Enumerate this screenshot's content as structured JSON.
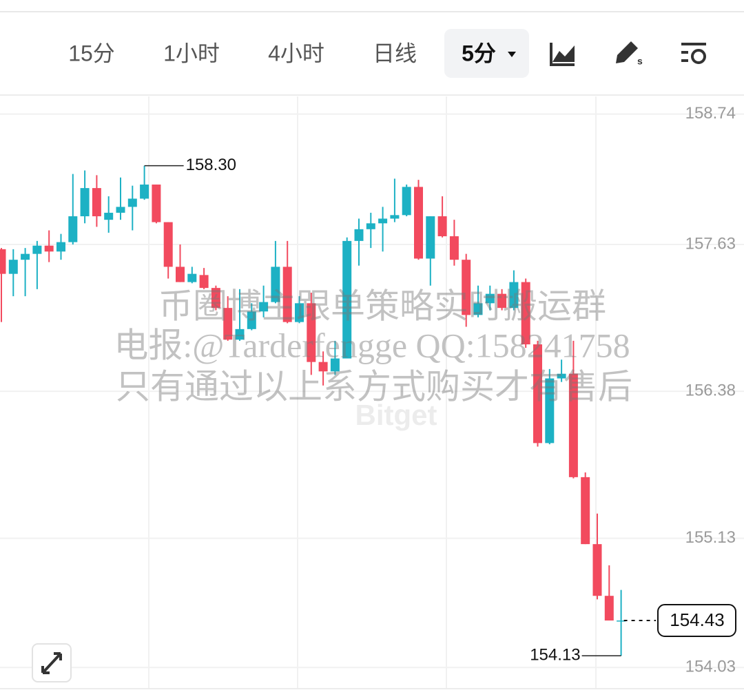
{
  "toolbar": {
    "tabs": [
      "15分",
      "1小时",
      "4小时",
      "日线"
    ],
    "active": "5分"
  },
  "watermark": {
    "lines": [
      "币圈博主跟单策略实时搬运群",
      "电报:@Tarderfengge QQ:158241758",
      "只有通过以上系方式购买才有售后"
    ],
    "logo": "Bitget"
  },
  "chart_data": {
    "type": "candlestick",
    "up_color": "#1db1c4",
    "down_color": "#f24a5e",
    "grid": true,
    "ylim": [
      153.85,
      158.89
    ],
    "yticks": [
      158.74,
      157.63,
      156.38,
      155.13,
      154.03
    ],
    "open": [
      157.59,
      157.38,
      157.5,
      157.55,
      157.62,
      157.57,
      157.65,
      157.87,
      158.11,
      157.84,
      157.9,
      157.95,
      158.02,
      158.14,
      157.82,
      157.44,
      157.31,
      157.37,
      157.26,
      157.09,
      156.82,
      156.91,
      157.06,
      157.14,
      157.44,
      156.97,
      157.13,
      156.63,
      156.55,
      156.66,
      157.66,
      157.76,
      157.81,
      157.85,
      157.88,
      158.12,
      157.51,
      157.87,
      157.7,
      157.5,
      157.03,
      157.13,
      157.21,
      157.09,
      157.31,
      156.78,
      155.94,
      156.49,
      156.53,
      155.65,
      155.08,
      154.64,
      154.43
    ],
    "high": [
      157.6,
      157.59,
      157.6,
      157.66,
      157.75,
      157.72,
      158.23,
      158.26,
      158.22,
      158.04,
      158.2,
      158.13,
      158.3,
      158.14,
      157.82,
      157.63,
      157.44,
      157.43,
      157.28,
      157.19,
      157.25,
      157.13,
      157.28,
      157.66,
      157.66,
      157.19,
      157.22,
      156.72,
      156.81,
      157.69,
      157.85,
      157.9,
      157.95,
      158.19,
      158.14,
      158.18,
      157.87,
      158.04,
      157.84,
      157.55,
      157.28,
      157.28,
      157.25,
      157.41,
      157.34,
      156.81,
      156.57,
      156.65,
      156.81,
      155.69,
      155.34,
      154.9,
      154.69
    ],
    "low": [
      156.97,
      157.19,
      157.19,
      157.25,
      157.48,
      157.5,
      157.63,
      157.81,
      157.78,
      157.73,
      157.84,
      157.75,
      158.01,
      157.81,
      157.34,
      157.31,
      157.3,
      157.25,
      157.07,
      156.81,
      156.81,
      156.9,
      157.01,
      157.13,
      156.96,
      156.96,
      156.52,
      156.43,
      156.52,
      156.66,
      157.45,
      157.6,
      157.57,
      157.82,
      157.87,
      157.5,
      157.28,
      157.69,
      157.45,
      156.93,
      157.01,
      157.07,
      157.07,
      157.07,
      156.75,
      155.91,
      155.93,
      156.46,
      155.64,
      155.08,
      154.61,
      154.43,
      154.13
    ],
    "close": [
      157.38,
      157.5,
      157.55,
      157.62,
      157.57,
      157.65,
      157.87,
      158.11,
      157.87,
      157.9,
      157.95,
      158.02,
      158.14,
      157.82,
      157.44,
      157.31,
      157.38,
      157.26,
      157.09,
      156.82,
      156.91,
      157.06,
      157.14,
      157.44,
      156.97,
      157.13,
      156.63,
      156.55,
      156.66,
      157.66,
      157.76,
      157.81,
      157.85,
      157.88,
      158.12,
      157.51,
      157.87,
      157.7,
      157.5,
      157.03,
      157.13,
      157.21,
      157.09,
      157.31,
      156.78,
      155.94,
      156.49,
      156.53,
      155.65,
      155.08,
      154.64,
      154.43,
      154.43
    ],
    "max_marker": {
      "value": 158.3,
      "label": "158.30"
    },
    "min_marker": 154.13,
    "last_price": 154.43
  }
}
